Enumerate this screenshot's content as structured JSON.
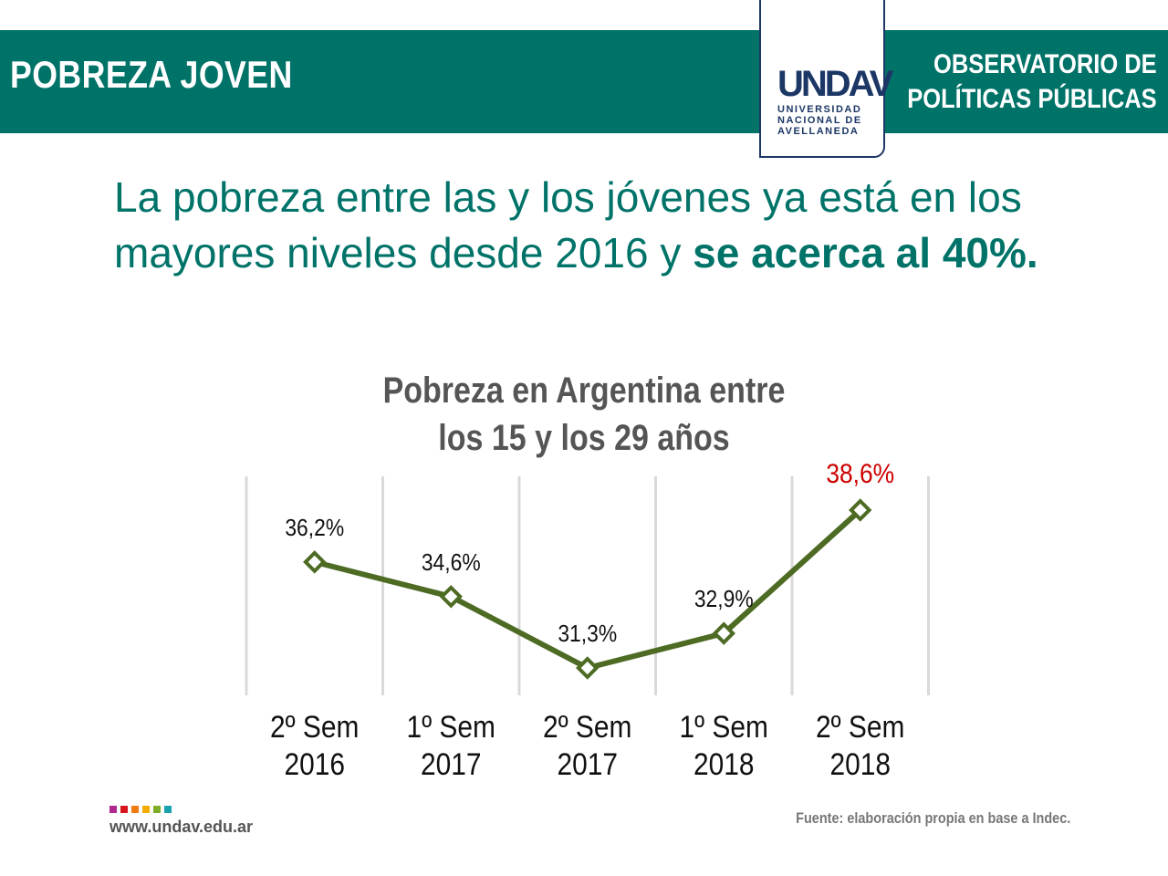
{
  "header": {
    "title": "POBREZA JOVEN",
    "observatory_line1": "OBSERVATORIO DE",
    "observatory_line2": "POLÍTICAS PÚBLICAS",
    "logo": {
      "mark": "UNDAV",
      "line1": "UNIVERSIDAD",
      "line2": "NACIONAL DE",
      "line3": "AVELLANEDA"
    }
  },
  "headline": {
    "normal": "La pobreza entre las y los jóvenes ya está en los mayores niveles desde 2016 y ",
    "bold": "se acerca al 40%."
  },
  "chart_data": {
    "type": "line",
    "title_line1": "Pobreza en Argentina entre",
    "title_line2": "los 15 y los 29 años",
    "categories": [
      [
        "2º Sem",
        "2016"
      ],
      [
        "1º Sem",
        "2017"
      ],
      [
        "2º Sem",
        "2017"
      ],
      [
        "1º Sem",
        "2018"
      ],
      [
        "2º Sem",
        "2018"
      ]
    ],
    "values": [
      36.2,
      34.6,
      31.3,
      32.9,
      38.6
    ],
    "labels": [
      "36,2%",
      "34,6%",
      "31,3%",
      "32,9%",
      "38,6%"
    ],
    "line_color": "#4e6b24",
    "highlight_color": "#cc0000",
    "highlight_index": 4,
    "grid": "vertical"
  },
  "footer": {
    "url": "www.undav.edu.ar",
    "source": "Fuente: elaboración propia en base a Indec.",
    "square_colors": [
      "#b0288f",
      "#d7141c",
      "#f07b12",
      "#f2ac00",
      "#7fad2a",
      "#1aa1b0"
    ]
  }
}
